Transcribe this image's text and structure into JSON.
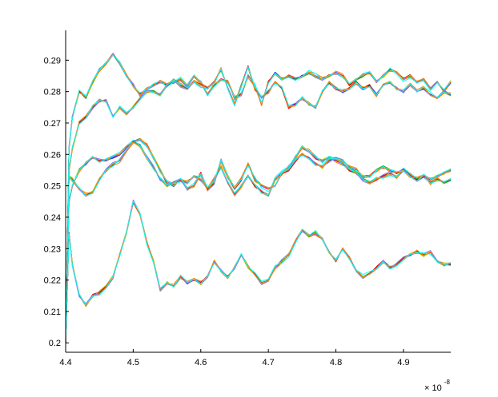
{
  "chart_data": {
    "type": "line",
    "title": "",
    "xlabel": "",
    "ylabel": "",
    "x_multiplier_label": {
      "base": "× 10",
      "exponent": "-8"
    },
    "xlim": [
      4.4,
      4.97
    ],
    "ylim": [
      0.197,
      0.2995
    ],
    "x_ticks": [
      4.4,
      4.5,
      4.6,
      4.7,
      4.8,
      4.9
    ],
    "x_tick_labels": [
      "4.4",
      "4.5",
      "4.6",
      "4.7",
      "4.8",
      "4.9"
    ],
    "y_ticks": [
      0.2,
      0.21,
      0.22,
      0.23,
      0.24,
      0.25,
      0.26,
      0.27,
      0.28,
      0.29
    ],
    "y_tick_labels": [
      "0.2",
      "0.21",
      "0.22",
      "0.23",
      "0.24",
      "0.25",
      "0.26",
      "0.27",
      "0.28",
      "0.29"
    ],
    "grid": false,
    "legend": "none",
    "box": "left-and-bottom axes only",
    "series_colors": [
      "#000000",
      "#00bfbf",
      "#ff00ff",
      "#0000ff",
      "#00aa00",
      "#ff0000",
      "#bfbf00",
      "#7f7fff",
      "#ff7f00",
      "#00ffff"
    ],
    "curve_families": [
      {
        "group": "top-upper",
        "x": [
          4.4,
          4.405,
          4.41,
          4.42,
          4.43,
          4.44,
          4.45,
          4.46,
          4.47,
          4.48,
          4.49,
          4.5,
          4.51,
          4.52,
          4.53,
          4.54,
          4.55,
          4.56,
          4.57,
          4.58,
          4.59,
          4.6,
          4.61,
          4.62,
          4.63,
          4.64,
          4.65,
          4.66,
          4.67,
          4.68,
          4.69,
          4.7,
          4.71,
          4.72,
          4.73,
          4.74,
          4.75,
          4.76,
          4.77,
          4.78,
          4.79,
          4.8,
          4.81,
          4.82,
          4.83,
          4.84,
          4.85,
          4.86,
          4.87,
          4.88,
          4.89,
          4.9,
          4.91,
          4.92,
          4.93,
          4.94,
          4.95,
          4.96,
          4.97
        ],
        "y": [
          0.2,
          0.262,
          0.272,
          0.28,
          0.278,
          0.283,
          0.287,
          0.289,
          0.292,
          0.289,
          0.285,
          0.282,
          0.279,
          0.281,
          0.282,
          0.283,
          0.282,
          0.283,
          0.284,
          0.282,
          0.285,
          0.283,
          0.279,
          0.282,
          0.284,
          0.283,
          0.278,
          0.279,
          0.285,
          0.282,
          0.276,
          0.283,
          0.286,
          0.284,
          0.285,
          0.284,
          0.285,
          0.286,
          0.285,
          0.284,
          0.285,
          0.286,
          0.285,
          0.282,
          0.284,
          0.285,
          0.286,
          0.283,
          0.285,
          0.287,
          0.286,
          0.284,
          0.285,
          0.283,
          0.284,
          0.281,
          0.283,
          0.28,
          0.283
        ]
      },
      {
        "group": "top-lower",
        "x": [
          4.4,
          4.405,
          4.41,
          4.42,
          4.43,
          4.44,
          4.45,
          4.46,
          4.47,
          4.48,
          4.49,
          4.5,
          4.51,
          4.52,
          4.53,
          4.54,
          4.55,
          4.56,
          4.57,
          4.58,
          4.59,
          4.6,
          4.61,
          4.62,
          4.63,
          4.64,
          4.65,
          4.66,
          4.67,
          4.68,
          4.69,
          4.7,
          4.71,
          4.72,
          4.73,
          4.74,
          4.75,
          4.76,
          4.77,
          4.78,
          4.79,
          4.8,
          4.81,
          4.82,
          4.83,
          4.84,
          4.85,
          4.86,
          4.87,
          4.88,
          4.89,
          4.9,
          4.91,
          4.92,
          4.93,
          4.94,
          4.95,
          4.96,
          4.97
        ],
        "y": [
          0.2,
          0.255,
          0.262,
          0.27,
          0.272,
          0.275,
          0.277,
          0.277,
          0.272,
          0.275,
          0.273,
          0.275,
          0.278,
          0.28,
          0.28,
          0.279,
          0.282,
          0.284,
          0.282,
          0.281,
          0.283,
          0.282,
          0.281,
          0.283,
          0.287,
          0.281,
          0.276,
          0.282,
          0.288,
          0.281,
          0.278,
          0.28,
          0.283,
          0.281,
          0.275,
          0.276,
          0.278,
          0.276,
          0.275,
          0.28,
          0.283,
          0.281,
          0.28,
          0.281,
          0.283,
          0.281,
          0.282,
          0.279,
          0.282,
          0.283,
          0.281,
          0.28,
          0.282,
          0.28,
          0.281,
          0.279,
          0.278,
          0.28,
          0.279
        ]
      },
      {
        "group": "middle-a",
        "x": [
          4.4,
          4.405,
          4.41,
          4.42,
          4.43,
          4.44,
          4.45,
          4.46,
          4.47,
          4.48,
          4.49,
          4.5,
          4.51,
          4.52,
          4.53,
          4.54,
          4.55,
          4.56,
          4.57,
          4.58,
          4.59,
          4.6,
          4.61,
          4.62,
          4.63,
          4.64,
          4.65,
          4.66,
          4.67,
          4.68,
          4.69,
          4.7,
          4.71,
          4.72,
          4.73,
          4.74,
          4.75,
          4.76,
          4.77,
          4.78,
          4.79,
          4.8,
          4.81,
          4.82,
          4.83,
          4.84,
          4.85,
          4.86,
          4.87,
          4.88,
          4.89,
          4.9,
          4.91,
          4.92,
          4.93,
          4.94,
          4.95,
          4.96,
          4.97
        ],
        "y": [
          0.2,
          0.253,
          0.252,
          0.249,
          0.247,
          0.248,
          0.252,
          0.255,
          0.257,
          0.258,
          0.261,
          0.264,
          0.265,
          0.263,
          0.259,
          0.255,
          0.251,
          0.25,
          0.252,
          0.251,
          0.253,
          0.252,
          0.249,
          0.252,
          0.256,
          0.251,
          0.247,
          0.25,
          0.253,
          0.25,
          0.248,
          0.247,
          0.252,
          0.254,
          0.256,
          0.259,
          0.262,
          0.261,
          0.259,
          0.258,
          0.259,
          0.258,
          0.257,
          0.255,
          0.254,
          0.252,
          0.251,
          0.252,
          0.253,
          0.254,
          0.253,
          0.255,
          0.254,
          0.252,
          0.253,
          0.251,
          0.252,
          0.251,
          0.252
        ]
      },
      {
        "group": "middle-b",
        "x": [
          4.4,
          4.405,
          4.41,
          4.42,
          4.43,
          4.44,
          4.45,
          4.46,
          4.47,
          4.48,
          4.49,
          4.5,
          4.51,
          4.52,
          4.53,
          4.54,
          4.55,
          4.56,
          4.57,
          4.58,
          4.59,
          4.6,
          4.61,
          4.62,
          4.63,
          4.64,
          4.65,
          4.66,
          4.67,
          4.68,
          4.69,
          4.7,
          4.71,
          4.72,
          4.73,
          4.74,
          4.75,
          4.76,
          4.77,
          4.78,
          4.79,
          4.8,
          4.81,
          4.82,
          4.83,
          4.84,
          4.85,
          4.86,
          4.87,
          4.88,
          4.89,
          4.9,
          4.91,
          4.92,
          4.93,
          4.94,
          4.95,
          4.96,
          4.97
        ],
        "y": [
          0.2,
          0.245,
          0.25,
          0.255,
          0.257,
          0.259,
          0.258,
          0.258,
          0.259,
          0.26,
          0.262,
          0.264,
          0.263,
          0.259,
          0.256,
          0.252,
          0.25,
          0.251,
          0.252,
          0.249,
          0.25,
          0.254,
          0.249,
          0.251,
          0.258,
          0.253,
          0.249,
          0.252,
          0.257,
          0.252,
          0.25,
          0.249,
          0.25,
          0.254,
          0.255,
          0.258,
          0.26,
          0.259,
          0.257,
          0.256,
          0.258,
          0.259,
          0.258,
          0.256,
          0.255,
          0.253,
          0.253,
          0.255,
          0.256,
          0.255,
          0.254,
          0.255,
          0.253,
          0.252,
          0.253,
          0.252,
          0.253,
          0.254,
          0.255
        ]
      },
      {
        "group": "bottom",
        "x": [
          4.4,
          4.405,
          4.41,
          4.42,
          4.43,
          4.44,
          4.45,
          4.46,
          4.47,
          4.48,
          4.49,
          4.5,
          4.51,
          4.52,
          4.53,
          4.54,
          4.55,
          4.56,
          4.57,
          4.58,
          4.59,
          4.6,
          4.61,
          4.62,
          4.63,
          4.64,
          4.65,
          4.66,
          4.67,
          4.68,
          4.69,
          4.7,
          4.71,
          4.72,
          4.73,
          4.74,
          4.75,
          4.76,
          4.77,
          4.78,
          4.79,
          4.8,
          4.81,
          4.82,
          4.83,
          4.84,
          4.85,
          4.86,
          4.87,
          4.88,
          4.89,
          4.9,
          4.91,
          4.92,
          4.93,
          4.94,
          4.95,
          4.96,
          4.97
        ],
        "y": [
          0.2,
          0.235,
          0.225,
          0.215,
          0.212,
          0.215,
          0.216,
          0.218,
          0.221,
          0.228,
          0.235,
          0.245,
          0.241,
          0.232,
          0.226,
          0.217,
          0.219,
          0.218,
          0.221,
          0.219,
          0.22,
          0.219,
          0.221,
          0.226,
          0.223,
          0.221,
          0.224,
          0.228,
          0.224,
          0.222,
          0.219,
          0.22,
          0.224,
          0.226,
          0.228,
          0.232,
          0.236,
          0.234,
          0.235,
          0.233,
          0.229,
          0.226,
          0.23,
          0.227,
          0.223,
          0.221,
          0.222,
          0.224,
          0.226,
          0.224,
          0.225,
          0.227,
          0.228,
          0.229,
          0.228,
          0.229,
          0.226,
          0.225,
          0.225
        ]
      }
    ]
  }
}
